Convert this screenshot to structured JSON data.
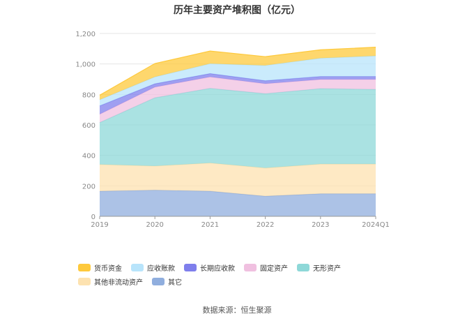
{
  "chart_data": {
    "type": "area",
    "stacked": true,
    "title": "历年主要资产堆积图（亿元）",
    "categories": [
      "2019",
      "2020",
      "2021",
      "2022",
      "2023",
      "2024Q1"
    ],
    "y_ticks": [
      "0",
      "200",
      "400",
      "600",
      "800",
      "1,000",
      "1,200"
    ],
    "ylim": [
      0,
      1200
    ],
    "legend_position": "bottom",
    "series": [
      {
        "name": "其它",
        "color": "#90aede",
        "values": [
          165,
          172,
          165,
          132,
          148,
          148
        ]
      },
      {
        "name": "其他非流动资产",
        "color": "#fde2b0",
        "values": [
          175,
          158,
          185,
          185,
          195,
          195
        ]
      },
      {
        "name": "无形资产",
        "color": "#8ed8d8",
        "values": [
          275,
          448,
          490,
          488,
          495,
          490
        ]
      },
      {
        "name": "固定资产",
        "color": "#f0c0e0",
        "values": [
          55,
          70,
          75,
          65,
          60,
          65
        ]
      },
      {
        "name": "长期应收款",
        "color": "#7f7fec",
        "values": [
          55,
          22,
          22,
          20,
          20,
          20
        ]
      },
      {
        "name": "应收账款",
        "color": "#b8e4fb",
        "values": [
          40,
          45,
          65,
          100,
          120,
          135
        ]
      },
      {
        "name": "货币资金",
        "color": "#fec93c",
        "values": [
          30,
          88,
          83,
          58,
          55,
          57
        ]
      }
    ]
  },
  "legend_order": [
    6,
    5,
    4,
    3,
    2,
    1,
    0
  ],
  "source": {
    "label": "数据来源：",
    "value": "恒生聚源"
  }
}
